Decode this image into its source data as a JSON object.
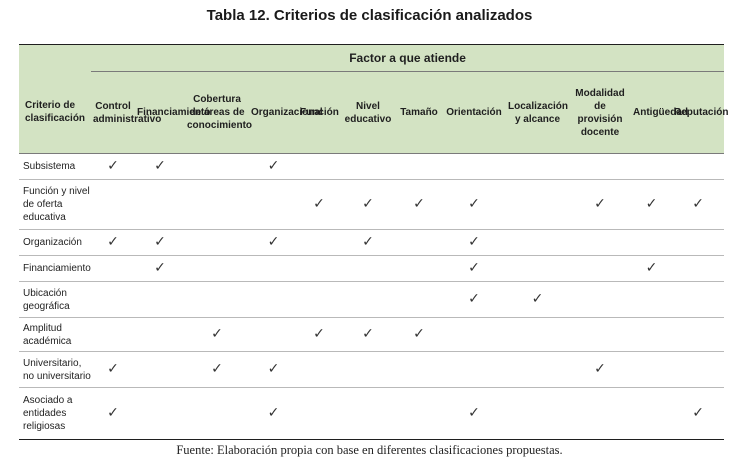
{
  "title": "Tabla 12. Criterios de clasificación analizados",
  "header": {
    "criterion_label": "Criterio de clasificación",
    "group_label": "Factor a que atiende",
    "factors": [
      "Control administrativo",
      "Financiamiento",
      "Cobertura de áreas de conocimiento",
      "Organizacional",
      "Función",
      "Nivel educativo",
      "Tamaño",
      "Orientación",
      "Localización y alcance",
      "Modalidad de provisión docente",
      "Antigüedad",
      "Reputación"
    ]
  },
  "check_symbol": "✓",
  "rows": [
    {
      "label": "Subsistema",
      "checks": [
        true,
        true,
        false,
        true,
        false,
        false,
        false,
        false,
        false,
        false,
        false,
        false
      ]
    },
    {
      "label": "Función y nivel de oferta educativa",
      "checks": [
        false,
        false,
        false,
        false,
        true,
        true,
        true,
        true,
        false,
        true,
        true,
        true
      ]
    },
    {
      "label": "Organización",
      "checks": [
        true,
        true,
        false,
        true,
        false,
        true,
        false,
        true,
        false,
        false,
        false,
        false
      ]
    },
    {
      "label": "Financiamiento",
      "checks": [
        false,
        true,
        false,
        false,
        false,
        false,
        false,
        true,
        false,
        false,
        true,
        false
      ]
    },
    {
      "label": "Ubicación geográfica",
      "checks": [
        false,
        false,
        false,
        false,
        false,
        false,
        false,
        true,
        true,
        false,
        false,
        false
      ]
    },
    {
      "label": "Amplitud académica",
      "checks": [
        false,
        false,
        true,
        false,
        true,
        true,
        true,
        false,
        false,
        false,
        false,
        false
      ]
    },
    {
      "label": "Universitario, no universitario",
      "checks": [
        true,
        false,
        true,
        true,
        false,
        false,
        false,
        false,
        false,
        true,
        false,
        false
      ]
    },
    {
      "label": "Asociado a entidades religiosas",
      "checks": [
        true,
        false,
        false,
        true,
        false,
        false,
        false,
        true,
        false,
        false,
        false,
        true
      ]
    }
  ],
  "source": "Fuente: Elaboración propia con base en diferentes clasificaciones propuestas."
}
